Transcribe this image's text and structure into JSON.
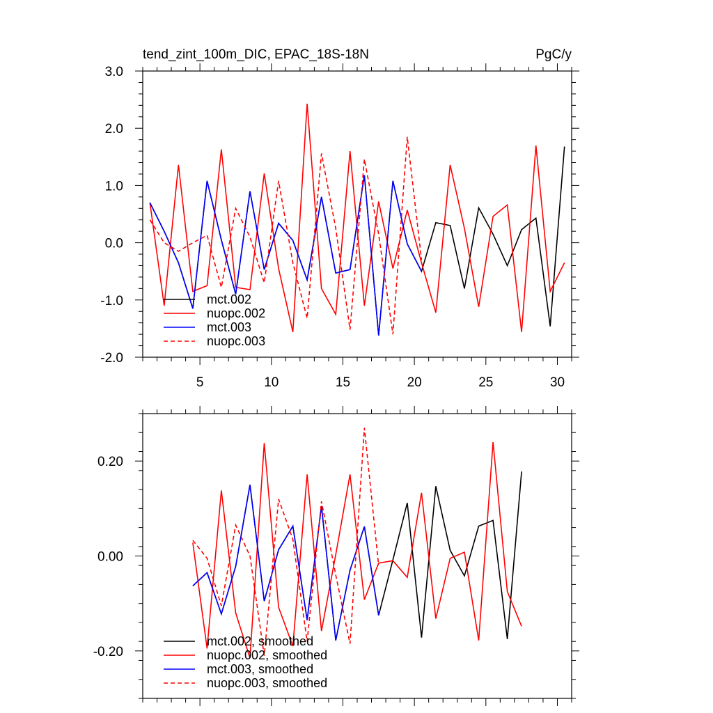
{
  "title_left": "tend_zint_100m_DIC, EPAC_18S-18N",
  "title_right": "PgC/y",
  "colors": {
    "mct002": "#000000",
    "nuopc002": "#ff0000",
    "mct003": "#0000ff",
    "nuopc003": "#ff0000"
  },
  "chart_data": [
    {
      "type": "line",
      "title": "tend_zint_100m_DIC, EPAC_18S-18N",
      "units": "PgC/y",
      "xlim": [
        1,
        31
      ],
      "ylim": [
        -2.0,
        3.0
      ],
      "xticks": [
        5,
        10,
        15,
        20,
        25,
        30
      ],
      "xtick_labels": [
        "5",
        "10",
        "15",
        "20",
        "25",
        "30"
      ],
      "yticks": [
        -2.0,
        -1.0,
        0.0,
        1.0,
        2.0,
        3.0
      ],
      "ytick_labels": [
        "-2.0",
        "-1.0",
        "0.0",
        "1.0",
        "2.0",
        "3.0"
      ],
      "legend_position": "bottom-left",
      "series": [
        {
          "name": "mct.002",
          "color": "#000000",
          "dash": "solid",
          "x": [
            1.5,
            2.5,
            3.5,
            4.5,
            5.5,
            6.5,
            7.5,
            8.5,
            9.5,
            10.5,
            11.5,
            12.5,
            13.5,
            14.5,
            15.5,
            16.5,
            17.5,
            18.5,
            19.5,
            20.5,
            21.5,
            22.5,
            23.5,
            24.5,
            25.5,
            26.5,
            27.5,
            28.5,
            29.5,
            30.5
          ],
          "y": [
            0.7,
            0.2,
            -0.35,
            -1.15,
            1.08,
            0.05,
            -0.9,
            0.9,
            -0.47,
            0.34,
            0.04,
            -0.65,
            0.8,
            -0.53,
            -0.47,
            1.18,
            -1.62,
            1.08,
            -0.02,
            -0.5,
            0.35,
            0.3,
            -0.8,
            0.61,
            0.15,
            -0.4,
            0.23,
            0.43,
            -1.46,
            1.68
          ]
        },
        {
          "name": "nuopc.002",
          "color": "#ff0000",
          "dash": "solid",
          "x": [
            1.5,
            2.5,
            3.5,
            4.5,
            5.5,
            6.5,
            7.5,
            8.5,
            9.5,
            10.5,
            11.5,
            12.5,
            13.5,
            14.5,
            15.5,
            16.5,
            17.5,
            18.5,
            19.5,
            20.5,
            21.5,
            22.5,
            23.5,
            24.5,
            25.5,
            26.5,
            27.5,
            28.5,
            29.5,
            30.5
          ],
          "y": [
            0.7,
            -1.1,
            1.36,
            -0.85,
            -0.75,
            1.63,
            -0.78,
            -0.82,
            1.21,
            -0.45,
            -1.56,
            2.43,
            -0.8,
            -1.25,
            1.6,
            -1.1,
            0.72,
            -0.45,
            0.57,
            -0.35,
            -1.22,
            1.36,
            0.25,
            -1.12,
            0.46,
            0.66,
            -1.56,
            1.7,
            -0.85,
            -0.35
          ]
        },
        {
          "name": "mct.003",
          "color": "#0000ff",
          "dash": "solid",
          "x": [
            1.5,
            2.5,
            3.5,
            4.5,
            5.5,
            6.5,
            7.5,
            8.5,
            9.5,
            10.5,
            11.5,
            12.5,
            13.5,
            14.5,
            15.5,
            16.5,
            17.5,
            18.5,
            19.5,
            20.5
          ],
          "y": [
            0.7,
            0.2,
            -0.35,
            -1.15,
            1.08,
            0.05,
            -0.9,
            0.9,
            -0.47,
            0.34,
            0.04,
            -0.65,
            0.8,
            -0.53,
            -0.47,
            1.18,
            -1.62,
            1.08,
            -0.02,
            -0.5
          ]
        },
        {
          "name": "nuopc.003",
          "color": "#ff0000",
          "dash": "dashed",
          "x": [
            1.5,
            2.5,
            3.5,
            4.5,
            5.5,
            6.5,
            7.5,
            8.5,
            9.5,
            10.5,
            11.5,
            12.5,
            13.5,
            14.5,
            15.5,
            16.5,
            17.5,
            18.5,
            19.5,
            20.5
          ],
          "y": [
            0.4,
            0.0,
            -0.15,
            0.0,
            0.13,
            -0.78,
            0.6,
            0.1,
            -0.7,
            1.08,
            -0.35,
            -1.32,
            1.56,
            0.25,
            -1.52,
            1.46,
            0.15,
            -1.6,
            1.85,
            -0.3
          ]
        }
      ]
    },
    {
      "type": "line",
      "xlim": [
        1,
        31
      ],
      "ylim": [
        -0.3,
        0.3
      ],
      "xticks": [
        5,
        10,
        15,
        20,
        25,
        30
      ],
      "yticks": [
        -0.2,
        0.0,
        0.2
      ],
      "ytick_labels": [
        "-0.20",
        "0.00",
        "0.20"
      ],
      "legend_position": "bottom-left",
      "series": [
        {
          "name": "mct.002, smoothed",
          "color": "#000000",
          "dash": "solid",
          "x": [
            4.5,
            5.5,
            6.5,
            7.5,
            8.5,
            9.5,
            10.5,
            11.5,
            12.5,
            13.5,
            14.5,
            15.5,
            16.5,
            17.5,
            18.5,
            19.5,
            20.5,
            21.5,
            22.5,
            23.5,
            24.5,
            25.5,
            26.5,
            27.5
          ],
          "y": [
            -0.063,
            -0.035,
            -0.122,
            -0.022,
            0.15,
            -0.095,
            0.013,
            0.063,
            -0.135,
            0.105,
            -0.178,
            -0.03,
            0.062,
            -0.125,
            -0.008,
            0.112,
            -0.172,
            0.147,
            0.012,
            -0.042,
            0.063,
            0.075,
            -0.175,
            0.178
          ]
        },
        {
          "name": "nuopc.002, smoothed",
          "color": "#ff0000",
          "dash": "solid",
          "x": [
            4.5,
            5.5,
            6.5,
            7.5,
            8.5,
            9.5,
            10.5,
            11.5,
            12.5,
            13.5,
            14.5,
            15.5,
            16.5,
            17.5,
            18.5,
            19.5,
            20.5,
            21.5,
            22.5,
            23.5,
            24.5,
            25.5,
            26.5,
            27.5
          ],
          "y": [
            0.028,
            -0.195,
            0.138,
            -0.12,
            -0.215,
            0.238,
            -0.108,
            -0.19,
            0.172,
            -0.158,
            0.003,
            0.172,
            -0.092,
            -0.015,
            -0.01,
            -0.045,
            0.133,
            -0.132,
            -0.005,
            0.008,
            -0.178,
            0.24,
            -0.075,
            -0.148
          ]
        },
        {
          "name": "mct.003, smoothed",
          "color": "#0000ff",
          "dash": "solid",
          "x": [
            4.5,
            5.5,
            6.5,
            7.5,
            8.5,
            9.5,
            10.5,
            11.5,
            12.5,
            13.5,
            14.5,
            15.5,
            16.5,
            17.5
          ],
          "y": [
            -0.063,
            -0.035,
            -0.122,
            -0.022,
            0.15,
            -0.095,
            0.013,
            0.063,
            -0.135,
            0.105,
            -0.178,
            -0.03,
            0.062,
            -0.125
          ]
        },
        {
          "name": "nuopc.003, smoothed",
          "color": "#ff0000",
          "dash": "dashed",
          "x": [
            4.5,
            5.5,
            6.5,
            7.5,
            8.5,
            9.5,
            10.5,
            11.5,
            12.5,
            13.5,
            14.5,
            15.5,
            16.5,
            17.5
          ],
          "y": [
            0.033,
            -0.005,
            -0.105,
            0.065,
            0.0,
            -0.21,
            0.12,
            0.035,
            -0.18,
            0.115,
            -0.04,
            -0.185,
            0.27,
            -0.02
          ]
        }
      ]
    }
  ]
}
